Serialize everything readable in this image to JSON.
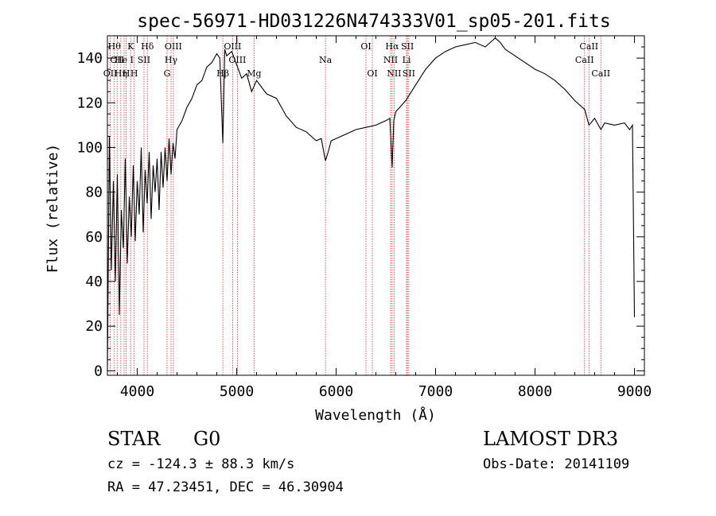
{
  "chart_data": {
    "type": "line",
    "title": "spec-56971-HD031226N474333V01_sp05-201.fits",
    "xlabel": "Wavelength (Å)",
    "ylabel": "Flux (relative)",
    "xlim": [
      3700,
      9100
    ],
    "ylim": [
      -2,
      150
    ],
    "x_ticks": [
      4000,
      5000,
      6000,
      7000,
      8000,
      9000
    ],
    "y_ticks": [
      0,
      20,
      40,
      60,
      80,
      100,
      120,
      140
    ],
    "grid": false,
    "series": [
      {
        "name": "flux",
        "x": [
          3700,
          3720,
          3740,
          3760,
          3780,
          3800,
          3820,
          3840,
          3860,
          3880,
          3900,
          3920,
          3940,
          3960,
          3980,
          4000,
          4020,
          4040,
          4060,
          4080,
          4100,
          4120,
          4140,
          4160,
          4180,
          4200,
          4220,
          4240,
          4260,
          4280,
          4300,
          4320,
          4340,
          4360,
          4380,
          4400,
          4450,
          4500,
          4550,
          4600,
          4650,
          4700,
          4750,
          4800,
          4830,
          4861,
          4880,
          4900,
          4950,
          5000,
          5050,
          5100,
          5150,
          5200,
          5300,
          5400,
          5500,
          5600,
          5700,
          5800,
          5850,
          5893,
          5920,
          5950,
          6000,
          6100,
          6200,
          6300,
          6400,
          6500,
          6540,
          6563,
          6580,
          6600,
          6700,
          6800,
          6900,
          7000,
          7100,
          7200,
          7300,
          7400,
          7500,
          7550,
          7600,
          7650,
          7700,
          7800,
          7900,
          8000,
          8100,
          8200,
          8300,
          8400,
          8500,
          8542,
          8600,
          8662,
          8700,
          8800,
          8900,
          8950,
          8980,
          9000
        ],
        "values": [
          0,
          105,
          45,
          85,
          40,
          88,
          25,
          72,
          55,
          95,
          48,
          78,
          60,
          92,
          58,
          85,
          70,
          100,
          62,
          90,
          75,
          98,
          68,
          92,
          80,
          95,
          72,
          98,
          82,
          100,
          85,
          104,
          88,
          102,
          95,
          108,
          112,
          118,
          122,
          128,
          130,
          136,
          138,
          142,
          140,
          102,
          144,
          141,
          143,
          137,
          131,
          133,
          125,
          130,
          124,
          122,
          114,
          109,
          107,
          103,
          104,
          94,
          98,
          103,
          104,
          106,
          108,
          109,
          110,
          112,
          113,
          91,
          112,
          116,
          121,
          128,
          135,
          140,
          143,
          145,
          146,
          147,
          145,
          147,
          149,
          147,
          144,
          141,
          138,
          135,
          133,
          130,
          126,
          121,
          117,
          110,
          113,
          108,
          111,
          110,
          111,
          108,
          110,
          24
        ]
      }
    ],
    "lines": [
      {
        "wl": 3729,
        "label": "OII",
        "row": 3
      },
      {
        "wl": 3770,
        "label": "Hθ",
        "row": 1
      },
      {
        "wl": 3798,
        "label": "OII",
        "row": 2
      },
      {
        "wl": 3835,
        "label": "Hη",
        "row": 3
      },
      {
        "wl": 3868,
        "label": "He I",
        "row": 2
      },
      {
        "wl": 3889,
        "label": "H",
        "row": 3
      },
      {
        "wl": 3934,
        "label": "K",
        "row": 1
      },
      {
        "wl": 3969,
        "label": "H",
        "row": 3
      },
      {
        "wl": 4068,
        "label": "SII",
        "row": 2
      },
      {
        "wl": 4102,
        "label": "Hδ",
        "row": 1
      },
      {
        "wl": 4300,
        "label": "G",
        "row": 3
      },
      {
        "wl": 4340,
        "label": "Hγ",
        "row": 2
      },
      {
        "wl": 4363,
        "label": "OIII",
        "row": 1
      },
      {
        "wl": 4861,
        "label": "Hβ",
        "row": 3
      },
      {
        "wl": 4959,
        "label": "OIII",
        "row": 1
      },
      {
        "wl": 5007,
        "label": "OIII",
        "row": 2
      },
      {
        "wl": 5175,
        "label": "Mg",
        "row": 3
      },
      {
        "wl": 5893,
        "label": "Na",
        "row": 2
      },
      {
        "wl": 6300,
        "label": "OI",
        "row": 1
      },
      {
        "wl": 6364,
        "label": "OI",
        "row": 3
      },
      {
        "wl": 6548,
        "label": "NII",
        "row": 2
      },
      {
        "wl": 6563,
        "label": "Hα",
        "row": 1
      },
      {
        "wl": 6583,
        "label": "NII",
        "row": 3
      },
      {
        "wl": 6708,
        "label": "Li",
        "row": 2
      },
      {
        "wl": 6717,
        "label": "SII",
        "row": 1
      },
      {
        "wl": 6731,
        "label": "SII",
        "row": 3
      },
      {
        "wl": 8498,
        "label": "CaII",
        "row": 2
      },
      {
        "wl": 8542,
        "label": "CaII",
        "row": 1
      },
      {
        "wl": 8662,
        "label": "CaII",
        "row": 3
      }
    ]
  },
  "info": {
    "class": "STAR",
    "subclass": "G0",
    "survey": "LAMOST DR3",
    "redshift": "cz = -124.3 ± 88.3 km/s",
    "obs_date": "Obs-Date: 20141109",
    "coords": "RA =  47.23451, DEC =  46.30904"
  },
  "colors": {
    "line_marker": "#cc3333",
    "spectrum": "#000000"
  }
}
